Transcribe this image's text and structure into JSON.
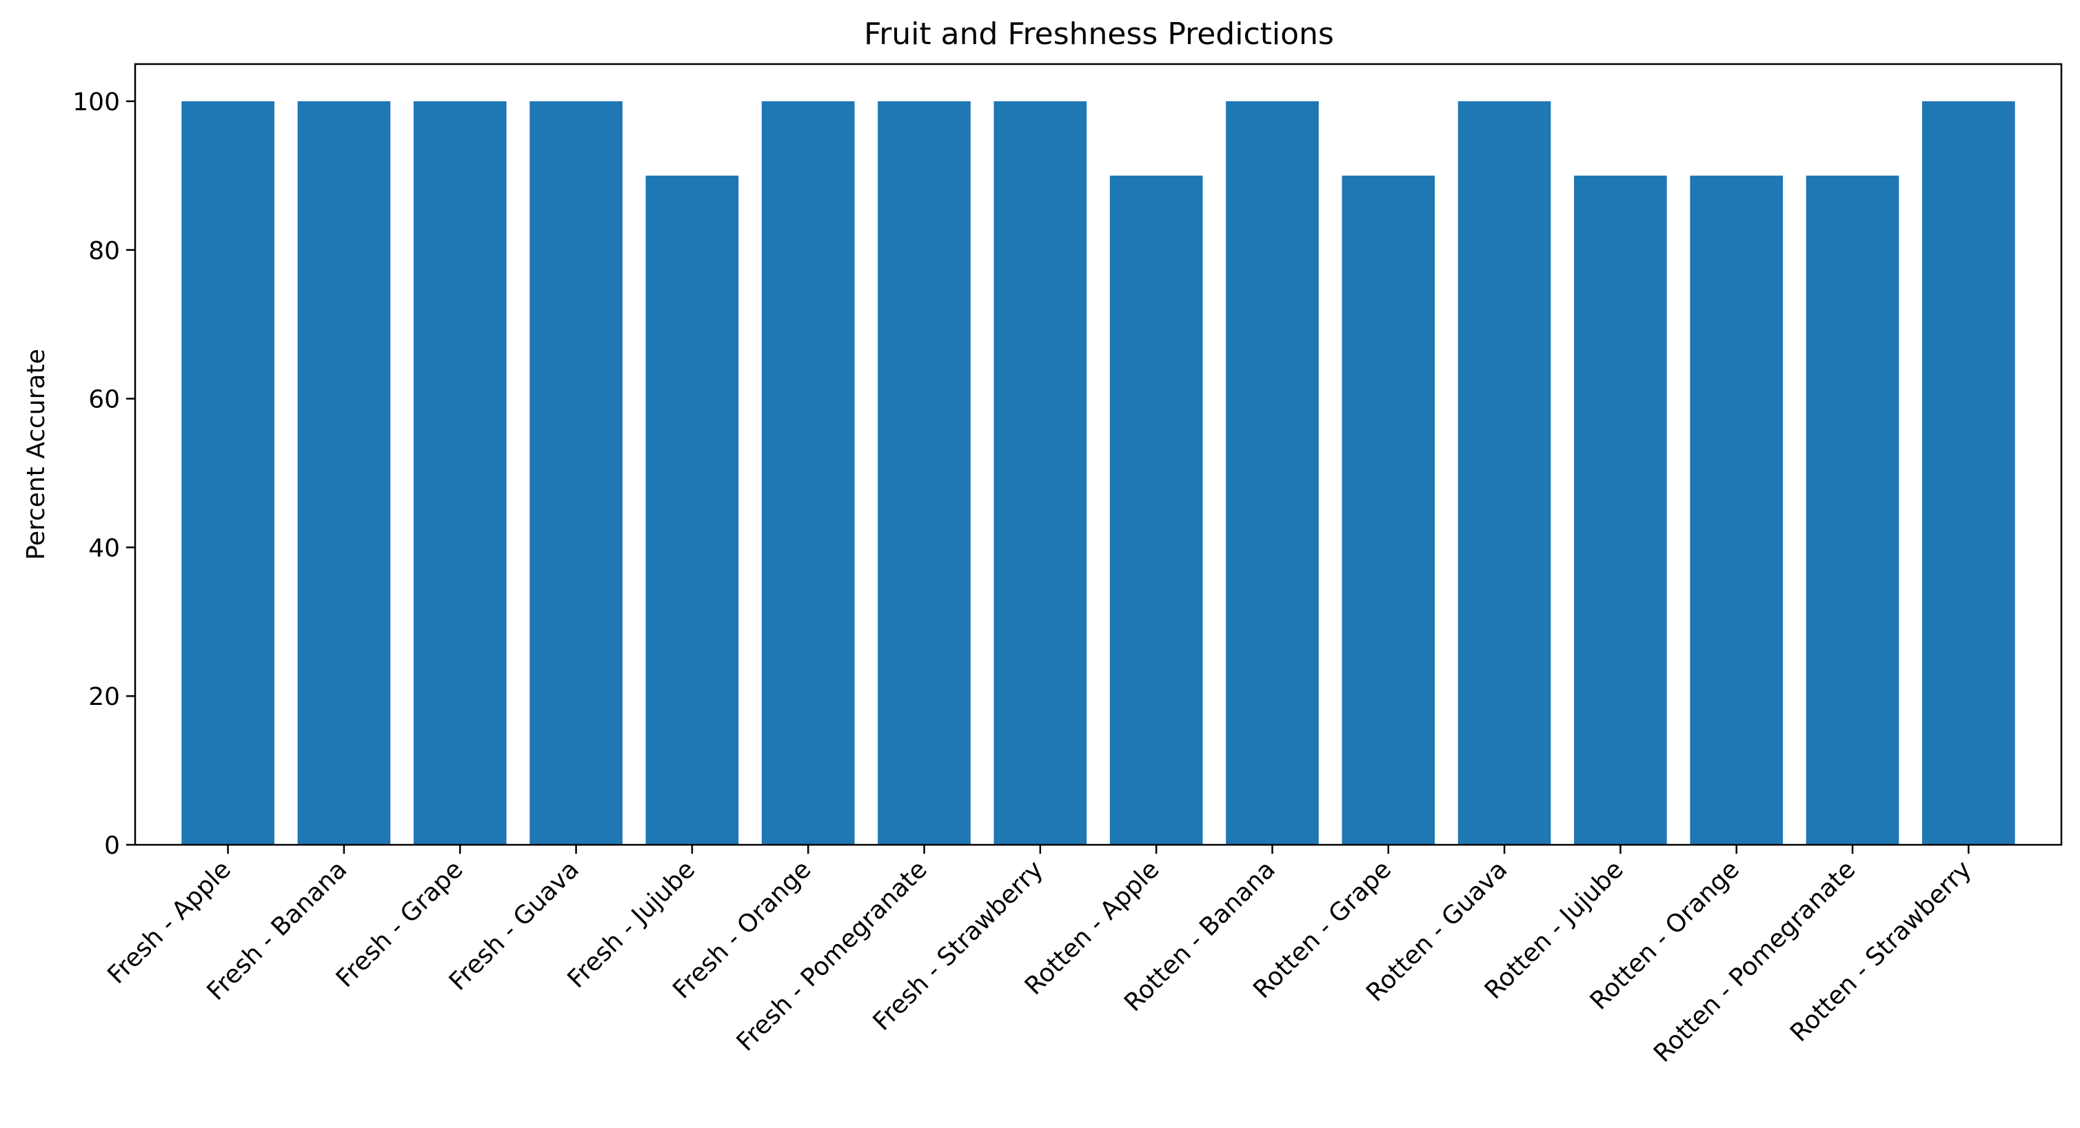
{
  "chart_data": {
    "type": "bar",
    "title": "Fruit and Freshness Predictions",
    "xlabel": "",
    "ylabel": "Percent Accurate",
    "categories": [
      "Fresh - Apple",
      "Fresh - Banana",
      "Fresh - Grape",
      "Fresh - Guava",
      "Fresh - Jujube",
      "Fresh - Orange",
      "Fresh - Pomegranate",
      "Fresh - Strawberry",
      "Rotten - Apple",
      "Rotten - Banana",
      "Rotten - Grape",
      "Rotten - Guava",
      "Rotten - Jujube",
      "Rotten - Orange",
      "Rotten - Pomegranate",
      "Rotten - Strawberry"
    ],
    "values": [
      100,
      100,
      100,
      100,
      90,
      100,
      100,
      100,
      90,
      100,
      90,
      100,
      90,
      90,
      90,
      100
    ],
    "ylim": [
      0,
      105
    ],
    "yticks": [
      0,
      20,
      40,
      60,
      80,
      100
    ],
    "grid": false,
    "legend": "none",
    "bar_color": "#1f77b4"
  }
}
